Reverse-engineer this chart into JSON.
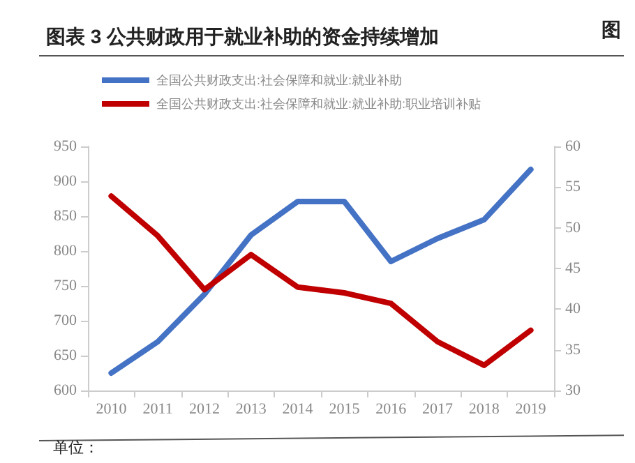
{
  "chart_data": {
    "type": "line",
    "title": "图表 3 公共财政用于就业补助的资金持续增加",
    "categories": [
      "2010",
      "2011",
      "2012",
      "2013",
      "2014",
      "2015",
      "2016",
      "2017",
      "2018",
      "2019"
    ],
    "series": [
      {
        "name": "全国公共财政支出:社会保障和就业:就业补助",
        "color": "#4472c4",
        "values": [
          625,
          670,
          738,
          823,
          871,
          871,
          785,
          818,
          845,
          917
        ]
      },
      {
        "name": "全国公共财政支出:社会保障和就业:就业补助:职业培训补贴",
        "color": "#c00000",
        "axis": "y2",
        "values": [
          53.9,
          49.0,
          42.4,
          46.7,
          42.7,
          42.0,
          40.7,
          36.0,
          33.1,
          37.4
        ]
      }
    ],
    "ylim": [
      600,
      950
    ],
    "yticks": [
      600,
      650,
      700,
      750,
      800,
      850,
      900,
      950
    ],
    "y2lim": [
      30,
      60
    ],
    "y2ticks": [
      30,
      35,
      40,
      45,
      50,
      55,
      60
    ],
    "grid": false,
    "legend": "top",
    "marker": "none",
    "line_style": "solid",
    "annotations": [
      "图",
      "单位："
    ]
  }
}
